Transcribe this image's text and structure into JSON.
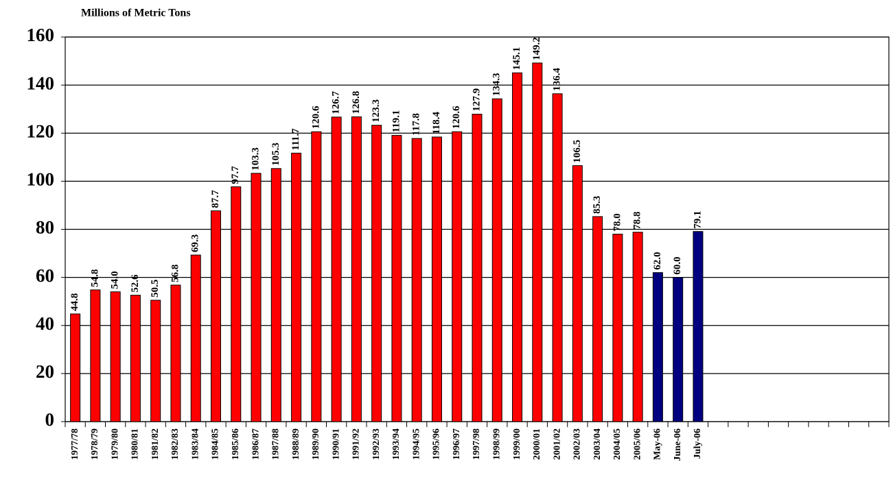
{
  "chart_data": {
    "type": "bar",
    "title": "Millions of Metric Tons",
    "categories": [
      "1977/78",
      "1978/79",
      "1979/80",
      "1980/81",
      "1981/82",
      "1982/83",
      "1983/84",
      "1984/85",
      "1985/86",
      "1986/87",
      "1987/88",
      "1988/89",
      "1989/90",
      "1990/91",
      "1991/92",
      "1992/93",
      "1993/94",
      "1994/95",
      "1995/96",
      "1996/97",
      "1997/98",
      "1998/99",
      "1999/00",
      "2000/01",
      "2001/02",
      "2002/03",
      "2003/04",
      "2004/05",
      "2005/06",
      "May-06",
      "June-06",
      "July-06",
      null,
      null,
      null,
      null,
      null,
      null,
      null,
      null,
      null
    ],
    "values": [
      44.8,
      54.8,
      54.0,
      52.6,
      50.5,
      56.8,
      69.3,
      87.7,
      97.7,
      103.3,
      105.3,
      111.7,
      120.6,
      126.7,
      126.8,
      123.3,
      119.1,
      117.8,
      118.4,
      120.6,
      127.9,
      134.3,
      145.1,
      149.2,
      136.4,
      106.5,
      85.3,
      78.0,
      78.8,
      62.0,
      60.0,
      79.1,
      null,
      null,
      null,
      null,
      null,
      null,
      null,
      null,
      null
    ],
    "value_labels": [
      "44.8",
      "54.8",
      "54.0",
      "52.6",
      "50.5",
      "56.8",
      "69.3",
      "87.7",
      "97.7",
      "103.3",
      "105.3",
      "111.7",
      "120.6",
      "126.7",
      "126.8",
      "123.3",
      "119.1",
      "117.8",
      "118.4",
      "120.6",
      "127.9",
      "134.3",
      "145.1",
      "149.2",
      "136.4",
      "106.5",
      "85.3",
      "78.0",
      "78.8",
      "62.0",
      "60.0",
      "79.1",
      null,
      null,
      null,
      null,
      null,
      null,
      null,
      null,
      null
    ],
    "colors": [
      "#ff0000",
      "#ff0000",
      "#ff0000",
      "#ff0000",
      "#ff0000",
      "#ff0000",
      "#ff0000",
      "#ff0000",
      "#ff0000",
      "#ff0000",
      "#ff0000",
      "#ff0000",
      "#ff0000",
      "#ff0000",
      "#ff0000",
      "#ff0000",
      "#ff0000",
      "#ff0000",
      "#ff0000",
      "#ff0000",
      "#ff0000",
      "#ff0000",
      "#ff0000",
      "#ff0000",
      "#ff0000",
      "#ff0000",
      "#ff0000",
      "#ff0000",
      "#ff0000",
      "#000080",
      "#000080",
      "#000080",
      null,
      null,
      null,
      null,
      null,
      null,
      null,
      null,
      null
    ],
    "ylim": [
      0,
      160
    ],
    "yticks": [
      0,
      20,
      40,
      60,
      80,
      100,
      120,
      140,
      160
    ],
    "grid": true
  }
}
